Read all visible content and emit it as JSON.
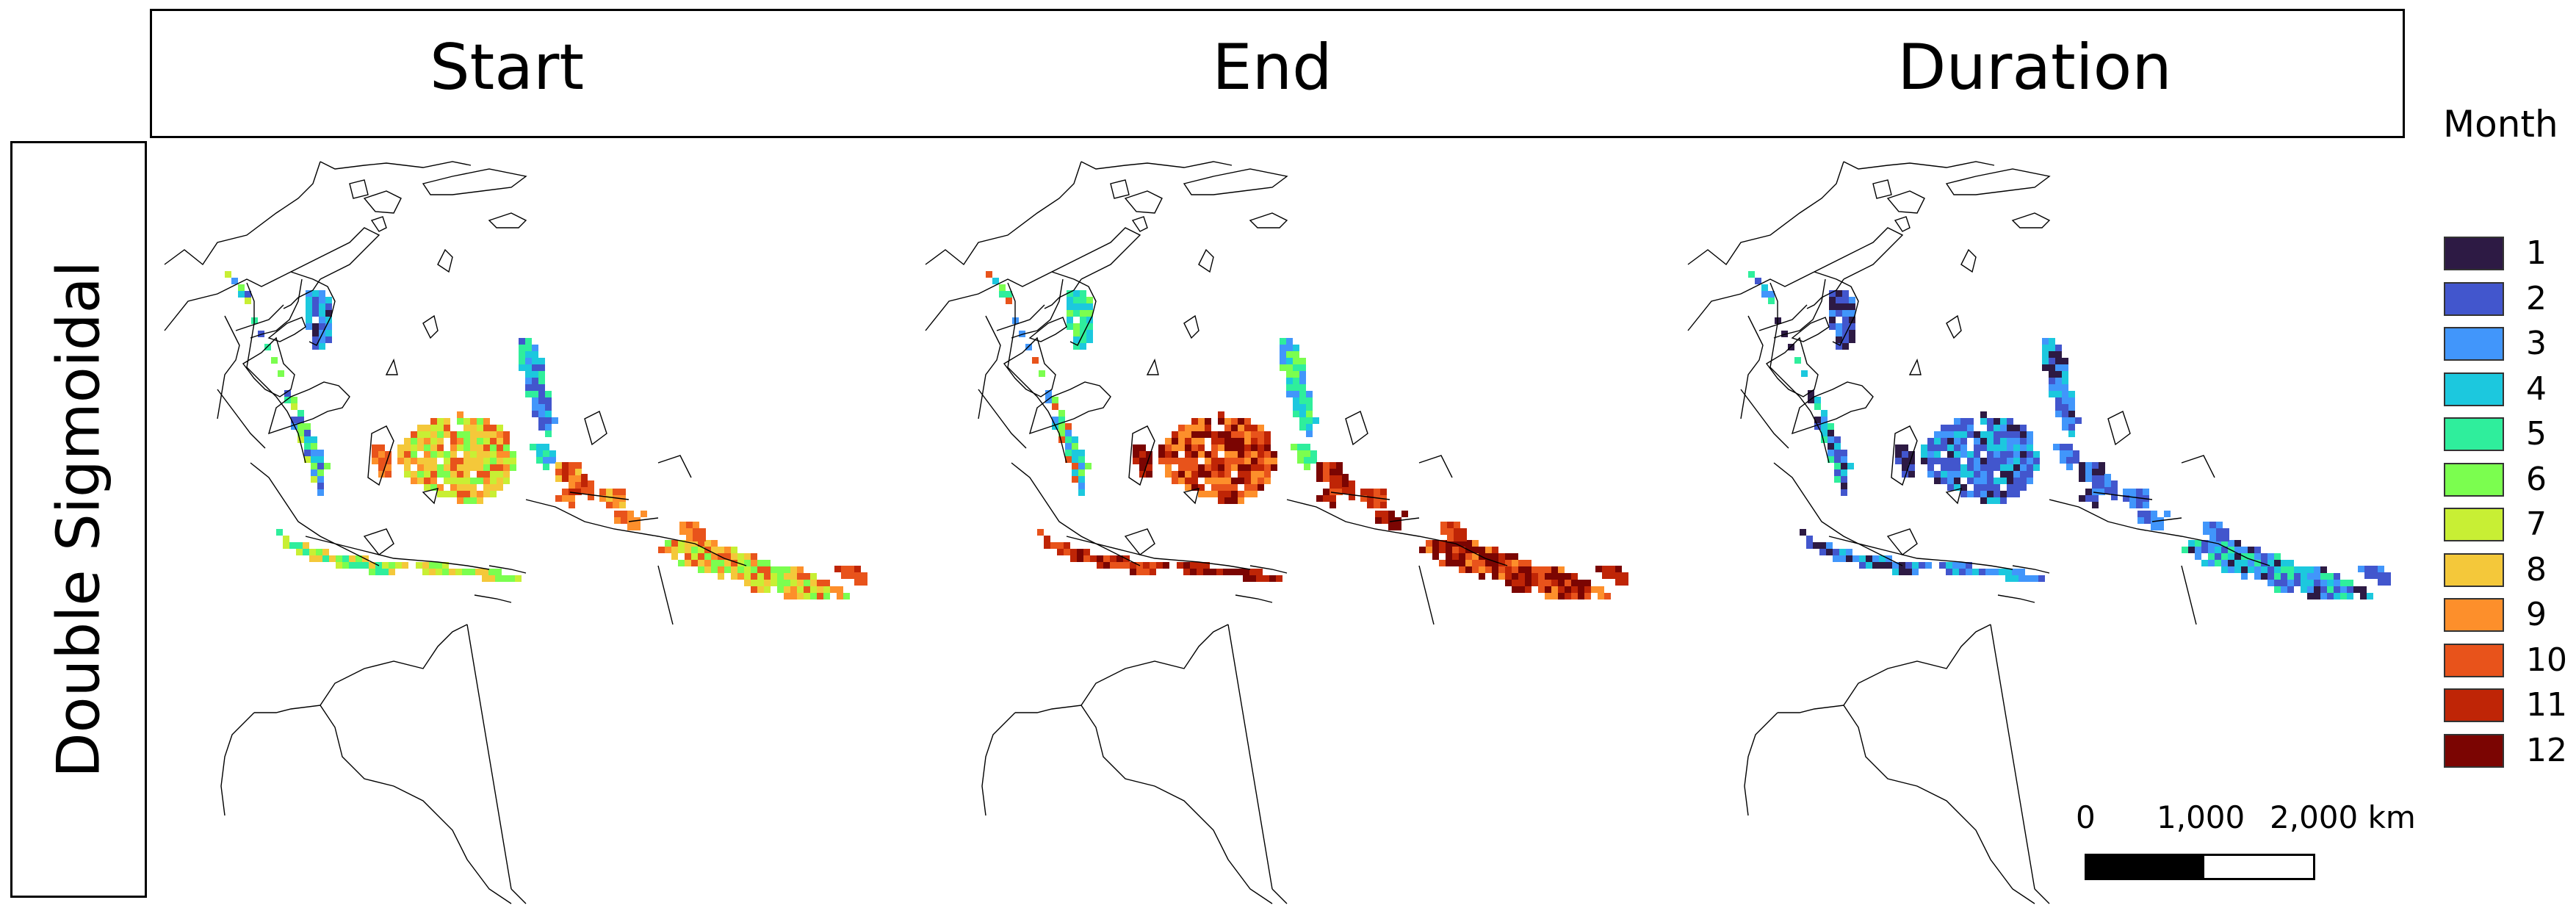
{
  "columns": [
    {
      "title": "Start",
      "scheme": "start"
    },
    {
      "title": "End",
      "scheme": "end"
    },
    {
      "title": "Duration",
      "scheme": "duration"
    }
  ],
  "row_label": "Double Sigmoidal",
  "legend": {
    "title": "Month",
    "items": [
      {
        "label": "1",
        "color": "#2d1a44"
      },
      {
        "label": "2",
        "color": "#4256cd"
      },
      {
        "label": "3",
        "color": "#4196fb"
      },
      {
        "label": "4",
        "color": "#1cc8de"
      },
      {
        "label": "5",
        "color": "#2fee9c"
      },
      {
        "label": "6",
        "color": "#7bfe4f"
      },
      {
        "label": "7",
        "color": "#c8ef34"
      },
      {
        "label": "8",
        "color": "#f4c83a"
      },
      {
        "label": "9",
        "color": "#fd8f2b"
      },
      {
        "label": "10",
        "color": "#e8531b"
      },
      {
        "label": "11",
        "color": "#bf2506"
      },
      {
        "label": "12",
        "color": "#7b0502"
      }
    ]
  },
  "scale_bar": {
    "labels": [
      "0",
      "1,000",
      "2,000 km"
    ]
  }
}
